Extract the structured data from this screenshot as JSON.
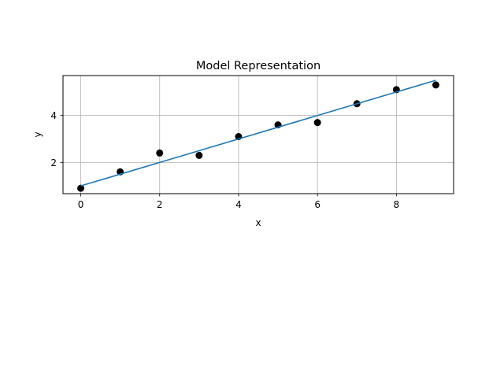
{
  "chart_data": {
    "type": "scatter",
    "title": "Model Representation",
    "xlabel": "x",
    "ylabel": "y",
    "xlim": [
      -0.45,
      9.45
    ],
    "ylim": [
      0.67,
      5.7
    ],
    "xticks": [
      0,
      2,
      4,
      6,
      8
    ],
    "yticks": [
      2,
      4
    ],
    "grid": true,
    "series": [
      {
        "kind": "scatter",
        "color": "#000000",
        "x": [
          0,
          1,
          2,
          3,
          4,
          5,
          6,
          7,
          8,
          9
        ],
        "y": [
          0.9,
          1.6,
          2.4,
          2.3,
          3.1,
          3.6,
          3.7,
          4.5,
          5.1,
          5.3
        ]
      },
      {
        "kind": "line",
        "color": "#1f77b4",
        "x": [
          0,
          9
        ],
        "y": [
          1.0,
          5.5
        ]
      }
    ]
  }
}
